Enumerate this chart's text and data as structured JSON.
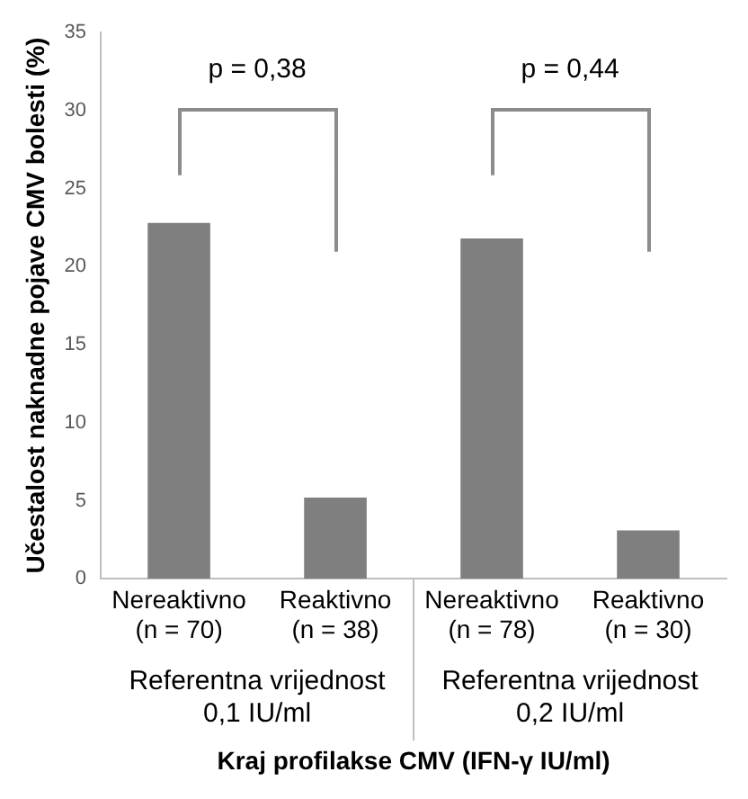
{
  "chart_data": {
    "type": "bar",
    "categories": [
      "Nereaktivno\n(n = 70)",
      "Reaktivno\n(n = 38)",
      "Nereaktivno\n(n = 78)",
      "Reaktivno\n(n = 30)"
    ],
    "values": [
      22.8,
      5.2,
      21.8,
      3.1
    ],
    "color": "#7f7f7f",
    "ylim": [
      0,
      35
    ],
    "yticks": [
      0,
      5,
      10,
      15,
      20,
      25,
      30,
      35
    ],
    "ylabel": "Učestalost naknadne pojave CMV bolesti (%)",
    "xlabel": "Kraj profilakse CMV (IFN-γ IU/ml)",
    "annotations": [
      "p = 0,38",
      "p = 0,44",
      "Referentna vrijednost\n0,1 IU/ml",
      "Referentna vrijednost\n0,2 IU/ml"
    ],
    "grid": false,
    "legend": false
  }
}
